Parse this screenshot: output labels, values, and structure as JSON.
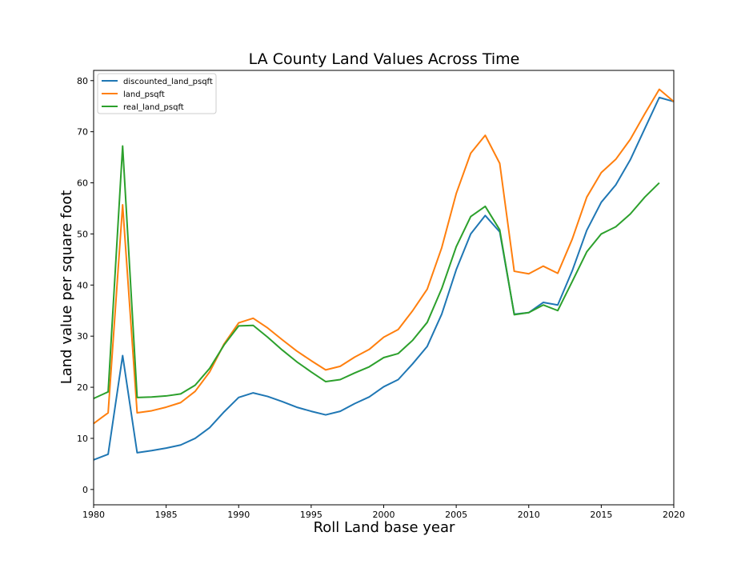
{
  "chart_data": {
    "type": "line",
    "title": "LA County Land Values Across Time",
    "xlabel": "Roll Land base year",
    "ylabel": "Land value per square foot",
    "xlim": [
      1980,
      2020
    ],
    "ylim": [
      -3,
      82
    ],
    "xticks": [
      1980,
      1985,
      1990,
      1995,
      2000,
      2005,
      2010,
      2015,
      2020
    ],
    "yticks": [
      0,
      10,
      20,
      30,
      40,
      50,
      60,
      70,
      80
    ],
    "grid": false,
    "legend_position": "top-left",
    "series": [
      {
        "name": "discounted_land_psqft",
        "color": "#1f77b4",
        "x": [
          1980,
          1981,
          1982,
          1983,
          1984,
          1985,
          1986,
          1987,
          1988,
          1989,
          1990,
          1991,
          1992,
          1993,
          1994,
          1995,
          1996,
          1997,
          1998,
          1999,
          2000,
          2001,
          2002,
          2003,
          2004,
          2005,
          2006,
          2007,
          2008,
          2009,
          2010,
          2011,
          2012,
          2013,
          2014,
          2015,
          2016,
          2017,
          2018,
          2019,
          2020
        ],
        "values": [
          5.8,
          6.9,
          26.2,
          7.2,
          7.6,
          8.1,
          8.7,
          10.0,
          12.1,
          15.2,
          18.0,
          18.9,
          18.2,
          17.2,
          16.1,
          15.3,
          14.6,
          15.3,
          16.8,
          18.1,
          20.1,
          21.5,
          24.6,
          28.0,
          34.3,
          43.0,
          50.0,
          53.6,
          50.4,
          34.3,
          34.6,
          36.6,
          36.1,
          42.8,
          50.7,
          56.2,
          59.6,
          64.5,
          70.6,
          76.7,
          75.9
        ]
      },
      {
        "name": "land_psqft",
        "color": "#ff7f0e",
        "x": [
          1980,
          1981,
          1982,
          1983,
          1984,
          1985,
          1986,
          1987,
          1988,
          1989,
          1990,
          1991,
          1992,
          1993,
          1994,
          1995,
          1996,
          1997,
          1998,
          1999,
          2000,
          2001,
          2002,
          2003,
          2004,
          2005,
          2006,
          2007,
          2008,
          2009,
          2010,
          2011,
          2012,
          2013,
          2014,
          2015,
          2016,
          2017,
          2018,
          2019,
          2020
        ],
        "values": [
          12.9,
          15.0,
          55.7,
          15.0,
          15.4,
          16.1,
          17.0,
          19.2,
          23.0,
          28.5,
          32.6,
          33.5,
          31.6,
          29.3,
          27.1,
          25.2,
          23.4,
          24.1,
          25.9,
          27.4,
          29.8,
          31.3,
          35.0,
          39.2,
          47.3,
          57.9,
          65.8,
          69.3,
          63.8,
          42.7,
          42.2,
          43.7,
          42.3,
          49.0,
          57.2,
          62.0,
          64.6,
          68.5,
          73.5,
          78.3,
          75.9
        ]
      },
      {
        "name": "real_land_psqft",
        "color": "#2ca02c",
        "x": [
          1980,
          1981,
          1982,
          1983,
          1984,
          1985,
          1986,
          1987,
          1988,
          1989,
          1990,
          1991,
          1992,
          1993,
          1994,
          1995,
          1996,
          1997,
          1998,
          1999,
          2000,
          2001,
          2002,
          2003,
          2004,
          2005,
          2006,
          2007,
          2008,
          2009,
          2010,
          2011,
          2012,
          2013,
          2014,
          2015,
          2016,
          2017,
          2018,
          2019
        ],
        "values": [
          17.8,
          19.1,
          67.2,
          18.0,
          18.1,
          18.3,
          18.7,
          20.4,
          23.7,
          28.3,
          32.0,
          32.1,
          29.8,
          27.3,
          25.0,
          23.0,
          21.1,
          21.5,
          22.8,
          24.0,
          25.8,
          26.6,
          29.2,
          32.7,
          39.3,
          47.5,
          53.4,
          55.4,
          50.8,
          34.2,
          34.6,
          36.1,
          35.0,
          40.7,
          46.5,
          50.0,
          51.4,
          53.9,
          57.2,
          60.0
        ]
      }
    ]
  }
}
